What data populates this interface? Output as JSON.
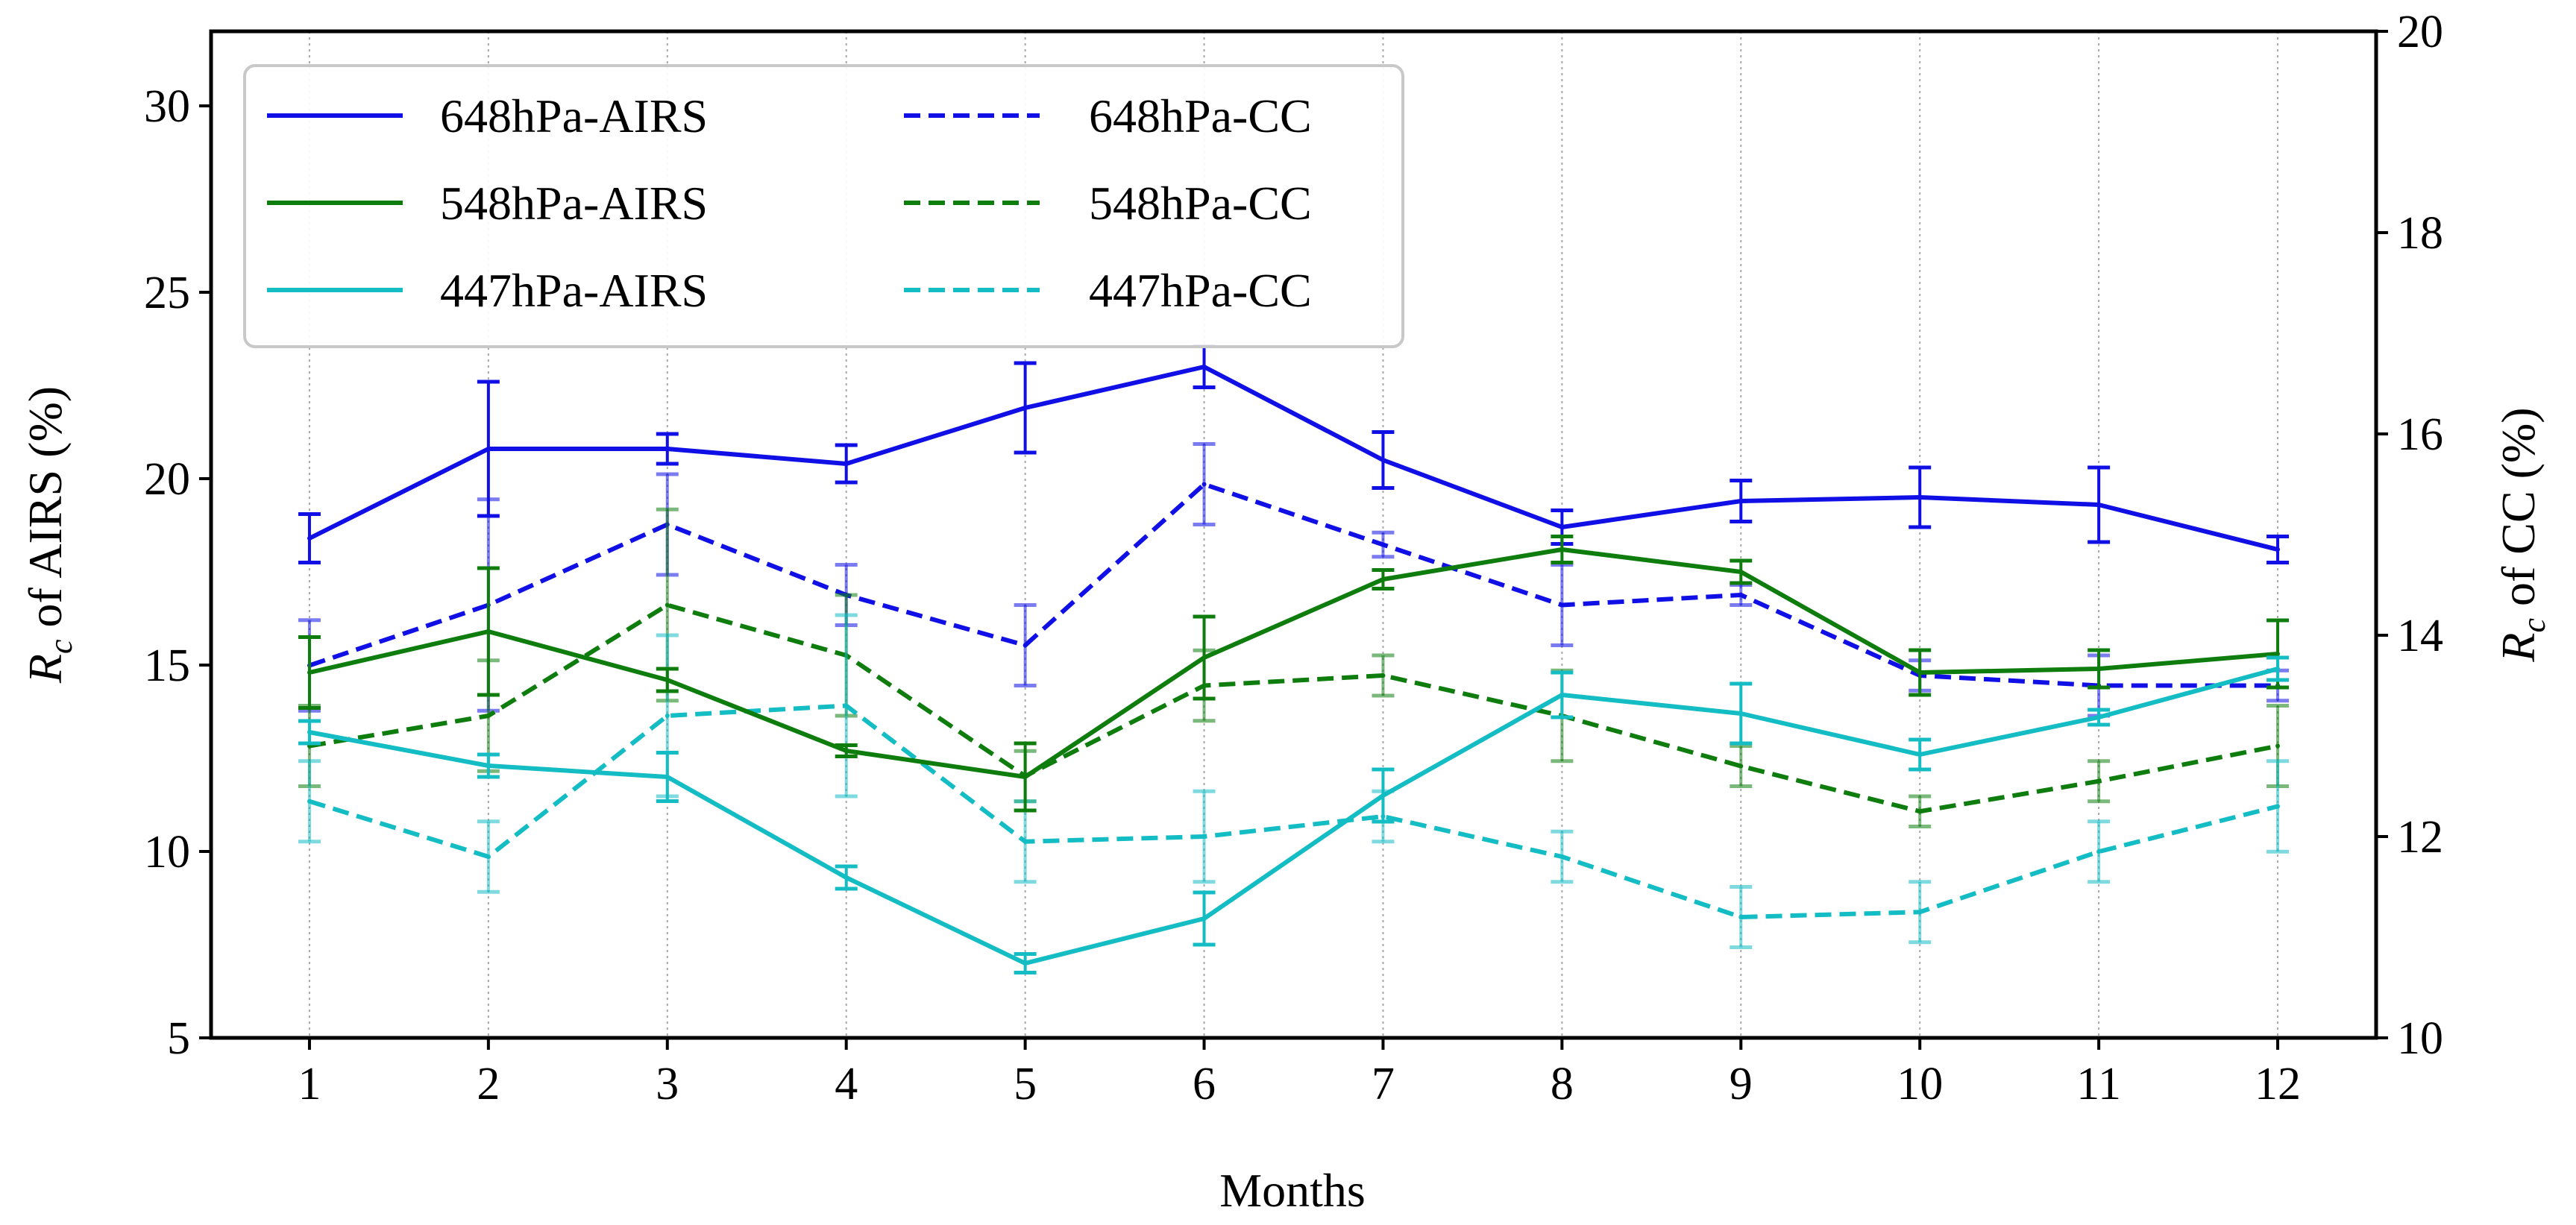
{
  "chart_data": {
    "type": "line",
    "xlabel": "Months",
    "ylabel_left": {
      "main": "R",
      "sub": "c",
      "rest": " of AIRS (%)"
    },
    "ylabel_right": {
      "main": "R",
      "sub": "c",
      "rest": " of CC (%)"
    },
    "categories": [
      1,
      2,
      3,
      4,
      5,
      6,
      7,
      8,
      9,
      10,
      11,
      12
    ],
    "xlim": [
      0.45,
      12.55
    ],
    "ylim_left": [
      5,
      32
    ],
    "ylim_right": [
      10,
      20
    ],
    "yticks_left": [
      5,
      10,
      15,
      20,
      25,
      30
    ],
    "yticks_right": [
      10,
      12,
      14,
      16,
      18,
      20
    ],
    "grid": "vertical dotted",
    "legend_position": "top-left",
    "legend_columns": 2,
    "series": [
      {
        "name": "648hPa-AIRS",
        "axis": "left",
        "color": "#1010e6",
        "style": "solid",
        "values": [
          18.4,
          20.8,
          20.8,
          20.4,
          21.9,
          23.0,
          20.5,
          18.7,
          19.4,
          19.5,
          19.3,
          18.1
        ],
        "errors": [
          0.65,
          1.8,
          0.4,
          0.5,
          1.2,
          0.55,
          0.75,
          0.45,
          0.55,
          0.8,
          1.0,
          0.35
        ]
      },
      {
        "name": "548hPa-AIRS",
        "axis": "left",
        "color": "#0e7d0e",
        "style": "solid",
        "values": [
          14.8,
          15.9,
          14.6,
          12.7,
          12.0,
          15.2,
          17.3,
          18.1,
          17.5,
          14.8,
          14.9,
          15.3
        ],
        "errors": [
          0.95,
          1.7,
          0.3,
          0.15,
          0.9,
          1.1,
          0.25,
          0.35,
          0.3,
          0.6,
          0.5,
          0.9
        ]
      },
      {
        "name": "447hPa-AIRS",
        "axis": "left",
        "color": "#14bcc4",
        "style": "solid",
        "values": [
          13.2,
          12.3,
          12.0,
          9.3,
          7.0,
          8.2,
          11.5,
          14.2,
          13.7,
          12.6,
          13.6,
          14.9
        ],
        "errors": [
          0.3,
          0.3,
          0.65,
          0.3,
          0.25,
          0.7,
          0.7,
          0.6,
          0.8,
          0.4,
          0.2,
          0.3
        ]
      },
      {
        "name": "648hPa-CC",
        "axis": "right",
        "color": "#1010e6",
        "style": "dashed",
        "values": [
          13.7,
          14.3,
          15.1,
          14.4,
          13.9,
          15.5,
          14.9,
          14.3,
          14.4,
          13.6,
          13.5,
          13.5
        ],
        "errors": [
          0.45,
          1.05,
          0.5,
          0.3,
          0.4,
          0.4,
          0.12,
          0.4,
          0.1,
          0.15,
          0.3,
          0.15
        ]
      },
      {
        "name": "548hPa-CC",
        "axis": "right",
        "color": "#0e7d0e",
        "style": "dashed",
        "values": [
          12.9,
          13.2,
          14.3,
          13.8,
          12.6,
          13.5,
          13.6,
          13.2,
          12.7,
          12.25,
          12.55,
          12.9
        ],
        "errors": [
          0.4,
          0.55,
          0.95,
          0.6,
          0.25,
          0.35,
          0.2,
          0.45,
          0.2,
          0.15,
          0.2,
          0.4
        ]
      },
      {
        "name": "447hPa-CC",
        "axis": "right",
        "color": "#14bcc4",
        "style": "dashed",
        "values": [
          12.35,
          11.8,
          13.2,
          13.3,
          11.95,
          12.0,
          12.2,
          11.8,
          11.2,
          11.25,
          11.85,
          12.3
        ],
        "errors": [
          0.4,
          0.35,
          0.8,
          0.9,
          0.4,
          0.45,
          0.25,
          0.25,
          0.3,
          0.3,
          0.3,
          0.45
        ]
      }
    ]
  }
}
